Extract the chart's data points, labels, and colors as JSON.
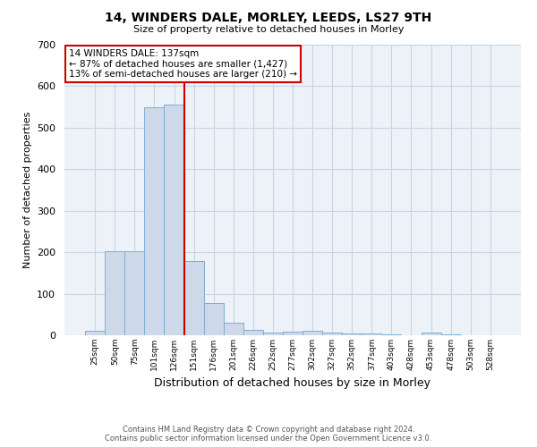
{
  "title": "14, WINDERS DALE, MORLEY, LEEDS, LS27 9TH",
  "subtitle": "Size of property relative to detached houses in Morley",
  "xlabel": "Distribution of detached houses by size in Morley",
  "ylabel": "Number of detached properties",
  "bar_color": "#cdd9e8",
  "bar_edge_color": "#7bafd4",
  "categories": [
    "25sqm",
    "50sqm",
    "75sqm",
    "101sqm",
    "126sqm",
    "151sqm",
    "176sqm",
    "201sqm",
    "226sqm",
    "252sqm",
    "277sqm",
    "302sqm",
    "327sqm",
    "352sqm",
    "377sqm",
    "403sqm",
    "428sqm",
    "453sqm",
    "478sqm",
    "503sqm",
    "528sqm"
  ],
  "values": [
    10,
    203,
    203,
    550,
    555,
    178,
    78,
    30,
    13,
    7,
    8,
    10,
    7,
    5,
    4,
    2,
    0,
    7,
    2,
    1,
    0
  ],
  "ylim": [
    0,
    700
  ],
  "yticks": [
    0,
    100,
    200,
    300,
    400,
    500,
    600,
    700
  ],
  "property_line_color": "#cc0000",
  "red_line_bar_index": 4.5,
  "annotation_text": "14 WINDERS DALE: 137sqm\n← 87% of detached houses are smaller (1,427)\n13% of semi-detached houses are larger (210) →",
  "annotation_box_color": "#ffffff",
  "annotation_box_edge_color": "#cc0000",
  "footer_text": "Contains HM Land Registry data © Crown copyright and database right 2024.\nContains public sector information licensed under the Open Government Licence v3.0.",
  "background_color": "#ffffff",
  "plot_bg_color": "#edf2f8",
  "grid_color": "#c8d4e4"
}
